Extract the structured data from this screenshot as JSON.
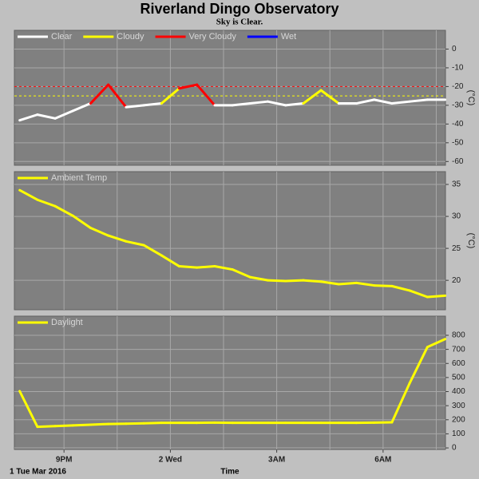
{
  "chart_data": [
    {
      "type": "line",
      "title": "Riverland Dingo Observatory",
      "subtitle": "Sky is Clear.",
      "y_label": "(°C)",
      "x": [
        19.75,
        20.25,
        20.75,
        21.25,
        21.75,
        22.25,
        22.75,
        23.25,
        23.75,
        24.25,
        24.75,
        25.25,
        25.75,
        26.25,
        26.75,
        27.25,
        27.75,
        28.25,
        28.75,
        29.25,
        29.75,
        30.25,
        30.75,
        31.25,
        31.75
      ],
      "xlim": [
        19.6,
        31.76
      ],
      "xgrid": [
        21,
        22.5,
        24,
        25.5,
        27,
        28.5,
        30,
        31.5
      ],
      "ylim": [
        -62,
        10
      ],
      "yticks": [
        0,
        -10,
        -20,
        -30,
        -40,
        -50,
        -60
      ],
      "grid": true,
      "thresholds": [
        {
          "value": -20,
          "color": "#ff0000"
        },
        {
          "value": -25,
          "color": "#ffff00"
        }
      ],
      "series": [
        {
          "name": "Clear",
          "color": "#ffffff",
          "values": [
            -38,
            -35,
            -37,
            -33,
            -29,
            null,
            -31,
            -30,
            -29,
            null,
            null,
            -30,
            -30,
            -29,
            -28,
            -30,
            -29,
            null,
            -29,
            -29,
            -27,
            -29,
            -28,
            -27,
            -27
          ]
        },
        {
          "name": "Cloudy",
          "color": "#ffff00",
          "values": [
            null,
            null,
            null,
            null,
            null,
            null,
            null,
            null,
            null,
            -21,
            null,
            null,
            null,
            null,
            null,
            null,
            null,
            -22,
            null,
            null,
            null,
            null,
            null,
            null,
            null
          ]
        },
        {
          "name": "Very Cloudy",
          "color": "#ff0000",
          "values": [
            null,
            null,
            null,
            null,
            null,
            -19,
            null,
            null,
            null,
            null,
            -19,
            null,
            null,
            null,
            null,
            null,
            null,
            null,
            null,
            null,
            null,
            null,
            null,
            null,
            null
          ]
        },
        {
          "name": "Wet",
          "color": "#0000ff",
          "values": [
            null,
            null,
            null,
            null,
            null,
            null,
            null,
            null,
            null,
            null,
            null,
            null,
            null,
            null,
            null,
            null,
            null,
            null,
            null,
            null,
            null,
            null,
            null,
            null,
            null
          ]
        }
      ]
    },
    {
      "type": "line",
      "y_label": "(°C)",
      "x": [
        19.75,
        20.25,
        20.75,
        21.25,
        21.75,
        22.25,
        22.75,
        23.25,
        23.75,
        24.25,
        24.75,
        25.25,
        25.75,
        26.25,
        26.75,
        27.25,
        27.75,
        28.25,
        28.75,
        29.25,
        29.75,
        30.25,
        30.75,
        31.25,
        31.75
      ],
      "xlim": [
        19.6,
        31.76
      ],
      "xgrid": [
        21,
        22.5,
        24,
        25.5,
        27,
        28.5,
        30,
        31.5
      ],
      "ylim": [
        15.4,
        37
      ],
      "yticks": [
        20,
        25,
        30,
        35
      ],
      "grid": true,
      "series": [
        {
          "name": "Ambient Temp",
          "color": "#ffff00",
          "values": [
            34.1,
            32.6,
            31.6,
            30.1,
            28.2,
            27.0,
            26.1,
            25.5,
            23.9,
            22.2,
            22.0,
            22.2,
            21.7,
            20.5,
            20.0,
            19.9,
            20.0,
            19.8,
            19.4,
            19.6,
            19.2,
            19.1,
            18.4,
            17.4,
            17.6
          ]
        }
      ]
    },
    {
      "type": "line",
      "x_label": "Time",
      "date_label": "1 Tue Mar 2016",
      "x": [
        19.75,
        20.25,
        20.75,
        21.25,
        21.75,
        22.25,
        22.75,
        23.25,
        23.75,
        24.25,
        24.75,
        25.25,
        25.75,
        26.25,
        26.75,
        27.25,
        27.75,
        28.25,
        28.75,
        29.25,
        29.75,
        30.25,
        30.75,
        31.25,
        31.75
      ],
      "xlim": [
        19.6,
        31.76
      ],
      "xgrid": [
        21,
        22.5,
        24,
        25.5,
        27,
        28.5,
        30,
        31.5
      ],
      "xticks": [
        {
          "value": 21,
          "label": "9PM"
        },
        {
          "value": 24,
          "label": "2 Wed"
        },
        {
          "value": 27,
          "label": "3AM"
        },
        {
          "value": 30,
          "label": "6AM"
        }
      ],
      "ylim": [
        -11,
        936
      ],
      "yticks": [
        0,
        100,
        200,
        300,
        400,
        500,
        600,
        700,
        800
      ],
      "grid": true,
      "series": [
        {
          "name": "Daylight",
          "color": "#ffff00",
          "values": [
            403,
            150,
            155,
            160,
            165,
            170,
            172,
            175,
            178,
            178,
            178,
            180,
            178,
            178,
            178,
            178,
            178,
            178,
            178,
            178,
            180,
            182,
            460,
            716,
            773
          ]
        }
      ]
    }
  ]
}
